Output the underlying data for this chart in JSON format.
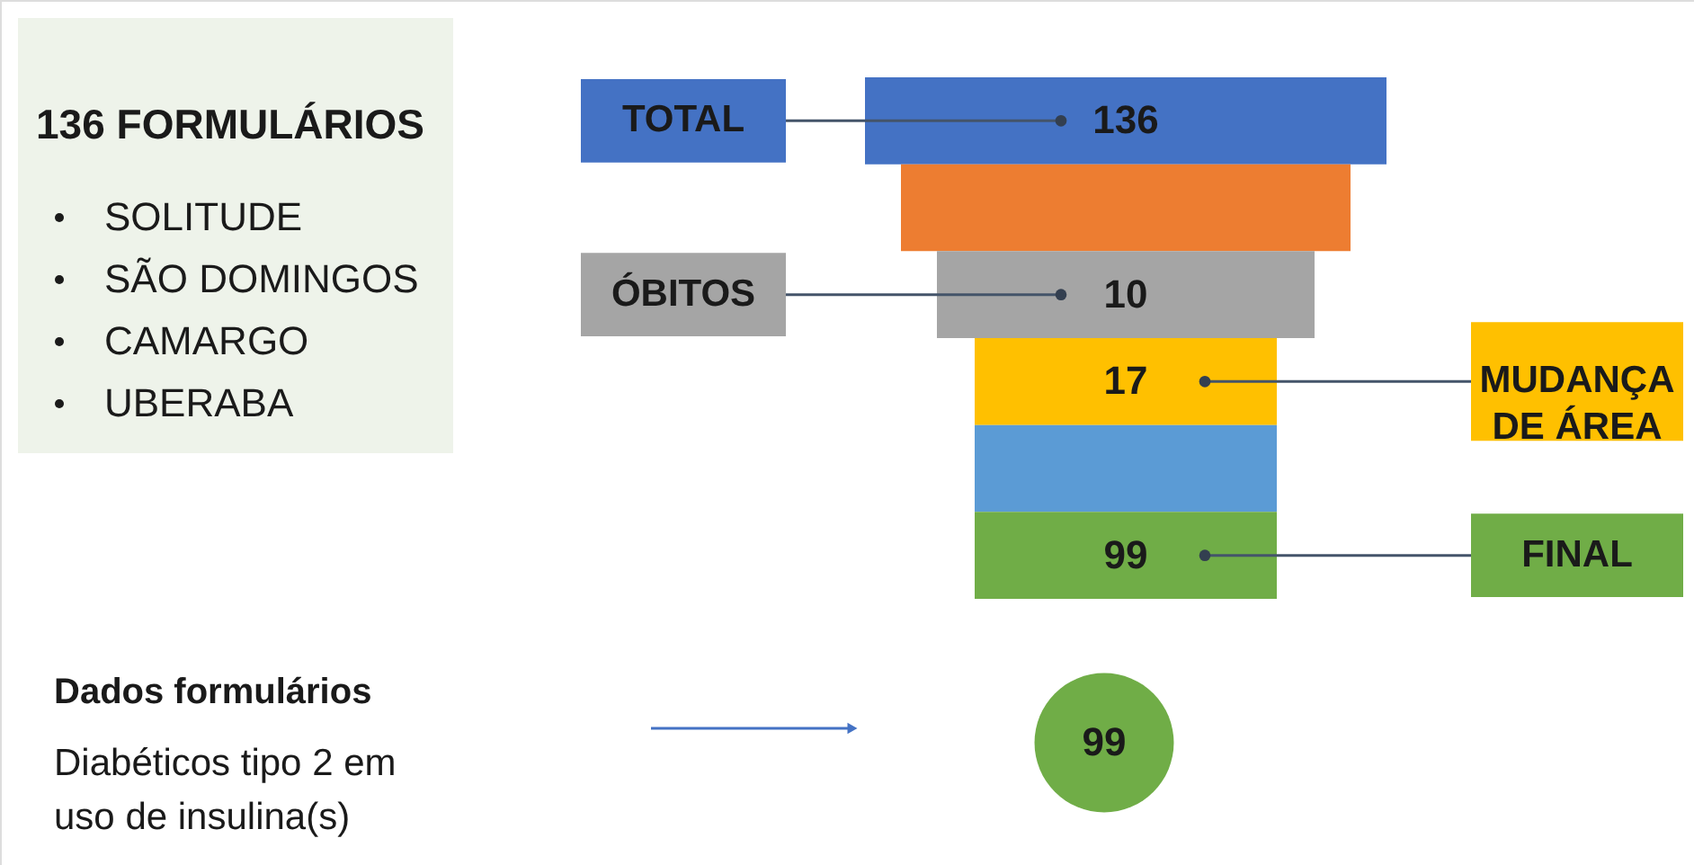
{
  "chart_data": {
    "type": "other",
    "categories": [
      "TOTAL",
      null,
      "ÓBITOS",
      "MUDANÇA DE ÁREA",
      null,
      "FINAL"
    ],
    "values": [
      136,
      null,
      10,
      17,
      null,
      99
    ],
    "data_labels": true,
    "colors": [
      "#4472c4",
      "#ed7d31",
      "#a5a5a5",
      "#ffc000",
      "#5b9bd5",
      "#70ad47"
    ],
    "annotations": [
      "136 FORMULÁRIOS",
      "SOLITUDE",
      "SÃO DOMINGOS",
      "CAMARGO",
      "UBERABA",
      "Dados formulários",
      "Diabéticos tipo 2 em uso de insulina(s)",
      "99"
    ]
  }
}
